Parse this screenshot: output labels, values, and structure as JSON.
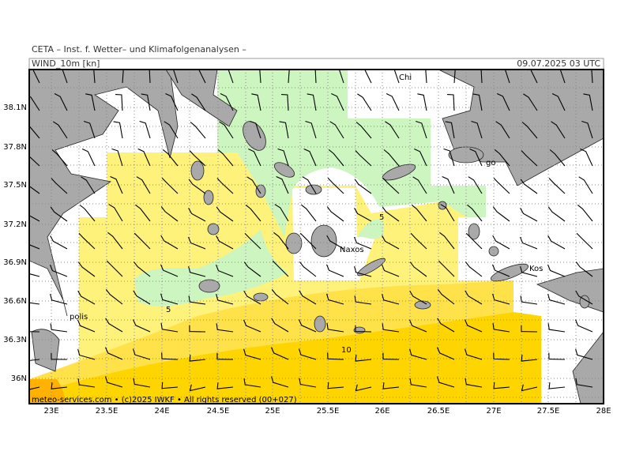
{
  "header": {
    "institute": "CETA – Inst. f. Wetter– und Klimafolgenanalysen –",
    "field": "WIND_10m [kn]",
    "valid_time": "09.07.2025 03 UTC"
  },
  "map": {
    "lat_ticks": [
      "38.1N",
      "37.8N",
      "37.5N",
      "37.2N",
      "36.9N",
      "36.6N",
      "36.3N",
      "36N"
    ],
    "lon_ticks": [
      "23E",
      "23.5E",
      "24E",
      "24.5E",
      "25E",
      "25.5E",
      "26E",
      "26.5E",
      "27E",
      "27.5E",
      "28E"
    ],
    "places": [
      "Chi",
      "Naxos",
      "Kos",
      "polis",
      "go"
    ],
    "contour_labels": [
      "5",
      "5",
      "10"
    ]
  },
  "footer": "meteo-services.com • (c)2025 IWKF • All rights reserved (00+027)"
}
